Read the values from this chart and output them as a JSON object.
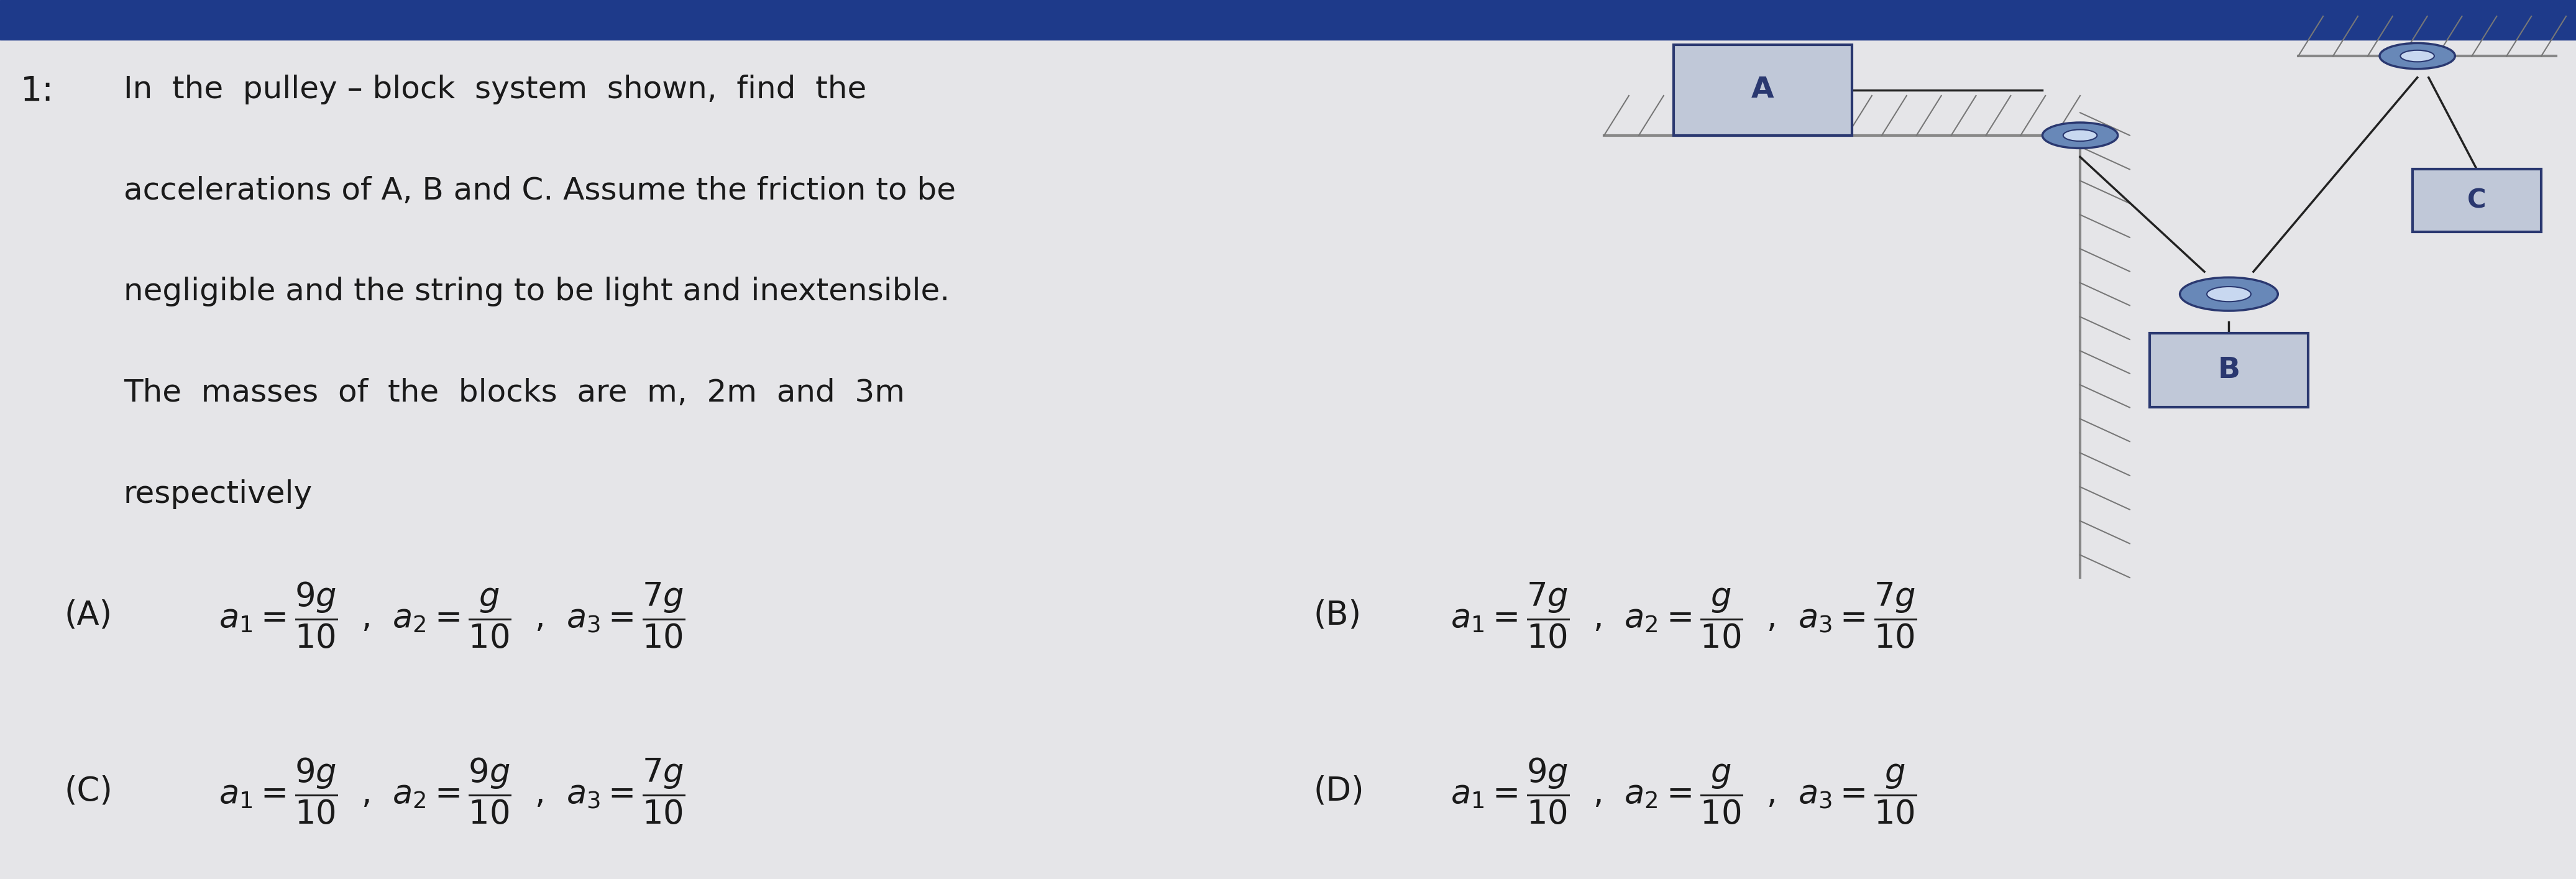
{
  "bg_color": "#e5e5e8",
  "top_bar_color": "#1e3a8a",
  "text_color": "#1a1a1a",
  "q_num": "1:",
  "q_lines": [
    "In  the  pulley – block  system  shown,  find  the",
    "accelerations of A, B and C. Assume the friction to be",
    "negligible and the string to be light and inextensible.",
    "The  masses  of  the  blocks  are  m,  2m  and  3m",
    "respectively"
  ],
  "opt_A_label": "(A)",
  "opt_A_expr": "$a_1 = \\dfrac{9g}{10}$  ,  $a_2 = \\dfrac{g}{10}$  ,  $a_3 = \\dfrac{7g}{10}$",
  "opt_B_label": "(B)",
  "opt_B_expr": "$a_1 = \\dfrac{7g}{10}$  ,  $a_2 = \\dfrac{g}{10}$  ,  $a_3 = \\dfrac{7g}{10}$",
  "opt_C_label": "(C)",
  "opt_C_expr": "$a_1 = \\dfrac{9g}{10}$  ,  $a_2 = \\dfrac{9g}{10}$  ,  $a_3 = \\dfrac{7g}{10}$",
  "opt_D_label": "(D)",
  "opt_D_expr": "$a_1 = \\dfrac{9g}{10}$  ,  $a_2 = \\dfrac{g}{10}$  ,  $a_3 = \\dfrac{g}{10}$",
  "wall_color": "#888888",
  "hatch_color": "#777777",
  "block_face": "#c0c8d8",
  "block_edge": "#2a3870",
  "pulley_outer": "#6888b8",
  "pulley_inner": "#c8d8f0",
  "string_color": "#222222"
}
